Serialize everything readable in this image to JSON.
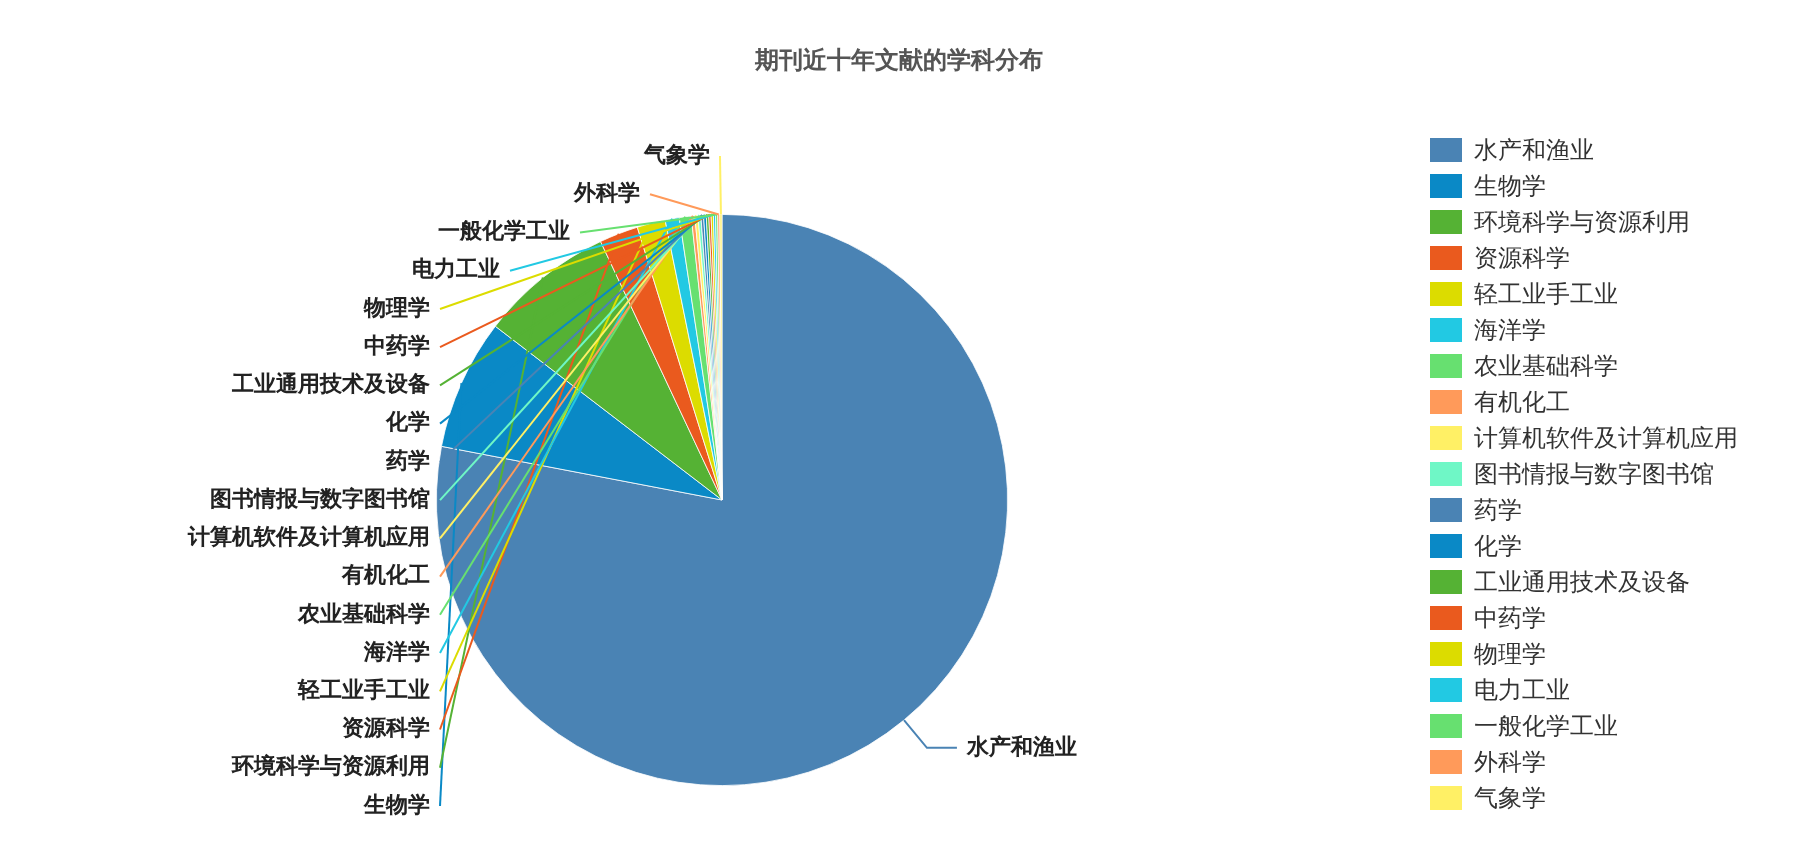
{
  "chart_data": {
    "type": "pie",
    "title": "期刊近十年文献的学科分布",
    "categories": [
      "水产和渔业",
      "生物学",
      "环境科学与资源利用",
      "资源科学",
      "轻工业手工业",
      "海洋学",
      "农业基础科学",
      "有机化工",
      "计算机软件及计算机应用",
      "图书情报与数字图书馆",
      "药学",
      "化学",
      "工业通用技术及设备",
      "中药学",
      "物理学",
      "电力工业",
      "一般化学工业",
      "外科学",
      "气象学"
    ],
    "values": [
      78.0,
      7.4,
      7.6,
      2.2,
      1.6,
      0.8,
      0.67,
      0.2,
      0.18,
      0.16,
      0.15,
      0.15,
      0.14,
      0.13,
      0.13,
      0.12,
      0.12,
      0.12,
      0.12
    ],
    "colors": [
      "#4a83b4",
      "#0a89c6",
      "#55b234",
      "#ea5a1e",
      "#dcdc00",
      "#22c9e3",
      "#67e070",
      "#ff9a5a",
      "#fff065",
      "#6ff7c6",
      "#4a83b4",
      "#0a89c6",
      "#55b234",
      "#ea5a1e",
      "#dcdc00",
      "#22c9e3",
      "#67e070",
      "#ff9a5a",
      "#fff065"
    ],
    "legend": "right"
  }
}
